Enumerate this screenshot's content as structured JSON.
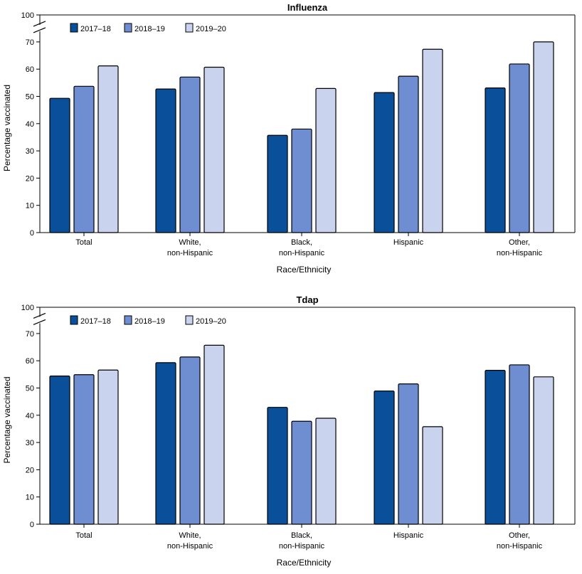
{
  "chart_data": [
    {
      "type": "bar",
      "title": "Influenza",
      "xlabel": "Race/Ethnicity",
      "ylabel": "Percentage vaccinated",
      "categories": [
        [
          "Total"
        ],
        [
          "White,",
          "non-Hispanic"
        ],
        [
          "Black,",
          "non-Hispanic"
        ],
        [
          "Hispanic"
        ],
        [
          "Other,",
          "non-Hispanic"
        ]
      ],
      "yticks": [
        "0",
        "10",
        "20",
        "30",
        "40",
        "50",
        "60",
        "70",
        "100"
      ],
      "ylim": [
        0,
        100
      ],
      "axis_break": true,
      "series": [
        {
          "name": "2017–18",
          "color": "#0a4f9a",
          "values": [
            49.3,
            52.7,
            35.7,
            51.4,
            53.1
          ]
        },
        {
          "name": "2018–19",
          "color": "#6f8ed1",
          "values": [
            53.7,
            57.1,
            38.0,
            57.4,
            61.9
          ]
        },
        {
          "name": "2019–20",
          "color": "#c9d3ee",
          "values": [
            61.2,
            60.7,
            52.9,
            67.3,
            70.0
          ]
        }
      ]
    },
    {
      "type": "bar",
      "title": "Tdap",
      "xlabel": "Race/Ethnicity",
      "ylabel": "Percentage vaccinated",
      "categories": [
        [
          "Total"
        ],
        [
          "White,",
          "non-Hispanic"
        ],
        [
          "Black,",
          "non-Hispanic"
        ],
        [
          "Hispanic"
        ],
        [
          "Other,",
          "non-Hispanic"
        ]
      ],
      "yticks": [
        "0",
        "10",
        "20",
        "30",
        "40",
        "50",
        "60",
        "70",
        "100"
      ],
      "ylim": [
        0,
        100
      ],
      "axis_break": true,
      "series": [
        {
          "name": "2017–18",
          "color": "#0a4f9a",
          "values": [
            54.4,
            59.3,
            42.9,
            48.9,
            56.5
          ]
        },
        {
          "name": "2018–19",
          "color": "#6f8ed1",
          "values": [
            54.9,
            61.4,
            37.8,
            51.5,
            58.5
          ]
        },
        {
          "name": "2019–20",
          "color": "#c9d3ee",
          "values": [
            56.6,
            65.7,
            38.9,
            35.8,
            54.1
          ]
        }
      ]
    }
  ]
}
